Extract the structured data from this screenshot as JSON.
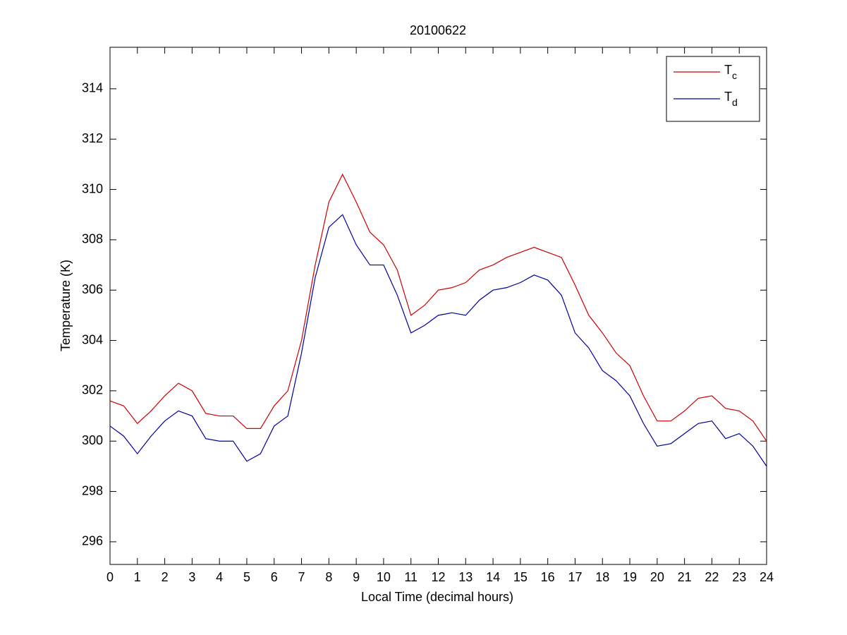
{
  "chart_data": {
    "type": "line",
    "title": "20100622",
    "x_label": "Local Time (decimal hours)",
    "y_label": "Temperature (K)",
    "x": [
      0,
      0.5,
      1,
      1.5,
      2,
      2.5,
      3,
      3.5,
      4,
      4.5,
      5,
      5.5,
      6,
      6.5,
      7,
      7.5,
      8,
      8.5,
      9,
      9.5,
      10,
      10.5,
      11,
      11.5,
      12,
      12.5,
      13,
      13.5,
      14,
      14.5,
      15,
      15.5,
      16,
      16.5,
      17,
      17.5,
      18,
      18.5,
      19,
      19.5,
      20,
      20.5,
      21,
      21.5,
      22,
      22.5,
      23,
      23.5,
      24
    ],
    "series": [
      {
        "name": "Tc",
        "color": "#cc0000",
        "values": [
          301.6,
          301.4,
          300.7,
          301.2,
          301.8,
          302.3,
          302.0,
          301.1,
          301.0,
          301.0,
          300.5,
          300.5,
          301.4,
          302.0,
          304.0,
          307.0,
          309.5,
          310.6,
          309.5,
          308.3,
          307.8,
          306.8,
          305.0,
          305.4,
          306.0,
          306.1,
          306.3,
          306.8,
          307.0,
          307.3,
          307.5,
          307.7,
          307.5,
          307.3,
          306.2,
          305.0,
          304.3,
          303.5,
          303.0,
          301.8,
          300.8,
          300.8,
          301.2,
          301.7,
          301.8,
          301.3,
          301.2,
          300.8,
          300.0
        ]
      },
      {
        "name": "Td",
        "color": "#00009e",
        "values": [
          300.6,
          300.2,
          299.5,
          300.2,
          300.8,
          301.2,
          301.0,
          300.1,
          300.0,
          300.0,
          299.2,
          299.5,
          300.6,
          301.0,
          303.5,
          306.5,
          308.5,
          309.0,
          307.8,
          307.0,
          307.0,
          305.8,
          304.3,
          304.6,
          305.0,
          305.1,
          305.0,
          305.6,
          306.0,
          306.1,
          306.3,
          306.6,
          306.4,
          305.8,
          304.3,
          303.7,
          302.8,
          302.4,
          301.8,
          300.7,
          299.8,
          299.9,
          300.3,
          300.7,
          300.8,
          300.1,
          300.3,
          299.8,
          299.0
        ]
      }
    ],
    "xlim": [
      0,
      24
    ],
    "xticks": [
      0,
      1,
      2,
      3,
      4,
      5,
      6,
      7,
      8,
      9,
      10,
      11,
      12,
      13,
      14,
      15,
      16,
      17,
      18,
      19,
      20,
      21,
      22,
      23,
      24
    ],
    "ylim": [
      295.1,
      315.65
    ],
    "yticks": [
      296,
      298,
      300,
      302,
      304,
      306,
      308,
      310,
      312,
      314
    ],
    "grid": false,
    "legend": "upper right"
  }
}
